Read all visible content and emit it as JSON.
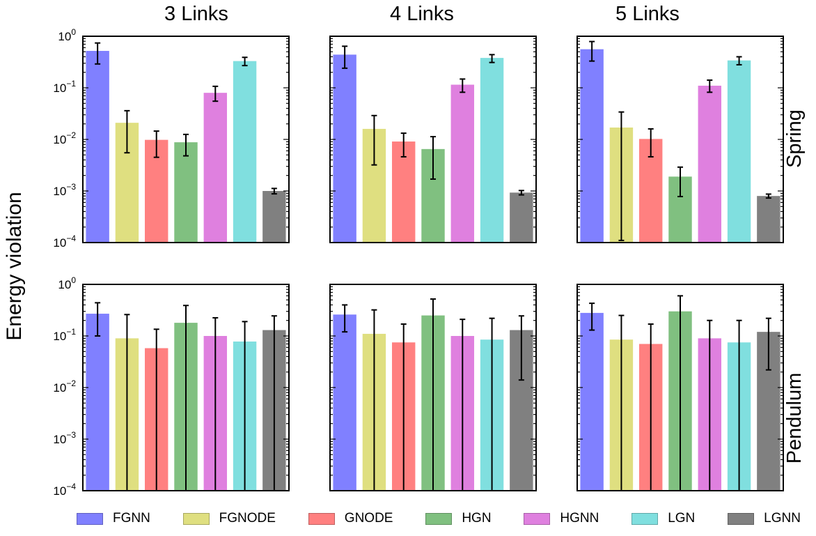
{
  "figure": {
    "ylabel": "Energy violation",
    "col_titles": [
      "3 Links",
      "4 Links",
      "5 Links"
    ],
    "row_titles": [
      "Spring",
      "Pendulum"
    ]
  },
  "legend": {
    "items": [
      {
        "label": "FGNN",
        "color": "#8080ff"
      },
      {
        "label": "FGNODE",
        "color": "#dfdf80"
      },
      {
        "label": "GNODE",
        "color": "#ff8080"
      },
      {
        "label": "HGN",
        "color": "#80c080"
      },
      {
        "label": "HGNN",
        "color": "#df80df"
      },
      {
        "label": "LGN",
        "color": "#80dfdf"
      },
      {
        "label": "LGNN",
        "color": "#808080"
      }
    ]
  },
  "chart_data": [
    {
      "type": "bar",
      "row": "Spring",
      "title": "3 Links",
      "yscale": "log",
      "ylim": [
        0.0001,
        1
      ],
      "ytick_labels": [
        "10^0",
        "10^-1",
        "10^-2",
        "10^-3",
        "10^-4"
      ],
      "categories": [
        "FGNN",
        "FGNODE",
        "GNODE",
        "HGN",
        "HGNN",
        "LGN",
        "LGNN"
      ],
      "values": [
        0.52,
        0.021,
        0.0098,
        0.0088,
        0.08,
        0.33,
        0.001
      ],
      "err_low": [
        0.29,
        0.0055,
        0.0045,
        0.0048,
        0.055,
        0.27,
        0.00088
      ],
      "err_high": [
        0.74,
        0.036,
        0.0145,
        0.0125,
        0.107,
        0.39,
        0.00112
      ]
    },
    {
      "type": "bar",
      "row": "Spring",
      "title": "4 Links",
      "yscale": "log",
      "ylim": [
        0.0001,
        1
      ],
      "categories": [
        "FGNN",
        "FGNODE",
        "GNODE",
        "HGN",
        "HGNN",
        "LGN",
        "LGNN"
      ],
      "values": [
        0.44,
        0.016,
        0.0091,
        0.0065,
        0.115,
        0.38,
        0.00093
      ],
      "err_low": [
        0.24,
        0.0032,
        0.0046,
        0.0017,
        0.082,
        0.31,
        0.00084
      ],
      "err_high": [
        0.64,
        0.029,
        0.0132,
        0.0113,
        0.148,
        0.44,
        0.00102
      ]
    },
    {
      "type": "bar",
      "row": "Spring",
      "title": "5 Links",
      "yscale": "log",
      "ylim": [
        0.0001,
        1
      ],
      "categories": [
        "FGNN",
        "FGNODE",
        "GNODE",
        "HGN",
        "HGNN",
        "LGN",
        "LGNN"
      ],
      "values": [
        0.56,
        0.017,
        0.0102,
        0.0019,
        0.11,
        0.34,
        0.0008
      ],
      "err_low": [
        0.33,
        0.00011,
        0.0046,
        0.00078,
        0.082,
        0.28,
        0.00073
      ],
      "err_high": [
        0.79,
        0.034,
        0.016,
        0.0029,
        0.141,
        0.4,
        0.00087
      ]
    },
    {
      "type": "bar",
      "row": "Pendulum",
      "title": "3 Links",
      "yscale": "log",
      "ylim": [
        0.0001,
        1
      ],
      "categories": [
        "FGNN",
        "FGNODE",
        "GNODE",
        "HGN",
        "HGNN",
        "LGN",
        "LGNN"
      ],
      "values": [
        0.27,
        0.09,
        0.058,
        0.18,
        0.1,
        0.078,
        0.13
      ],
      "err_low": [
        0.1,
        0.0001,
        0.0001,
        0.0001,
        0.0001,
        0.0001,
        0.0001
      ],
      "err_high": [
        0.44,
        0.26,
        0.135,
        0.39,
        0.225,
        0.19,
        0.245
      ]
    },
    {
      "type": "bar",
      "row": "Pendulum",
      "title": "4 Links",
      "yscale": "log",
      "ylim": [
        0.0001,
        1
      ],
      "categories": [
        "FGNN",
        "FGNODE",
        "GNODE",
        "HGN",
        "HGNN",
        "LGN",
        "LGNN"
      ],
      "values": [
        0.26,
        0.11,
        0.075,
        0.25,
        0.1,
        0.085,
        0.13
      ],
      "err_low": [
        0.12,
        0.0001,
        0.0001,
        0.0001,
        0.0001,
        0.0001,
        0.014
      ],
      "err_high": [
        0.4,
        0.32,
        0.17,
        0.52,
        0.21,
        0.22,
        0.245
      ]
    },
    {
      "type": "bar",
      "row": "Pendulum",
      "title": "5 Links",
      "yscale": "log",
      "ylim": [
        0.0001,
        1
      ],
      "categories": [
        "FGNN",
        "FGNODE",
        "GNODE",
        "HGN",
        "HGNN",
        "LGN",
        "LGNN"
      ],
      "values": [
        0.28,
        0.085,
        0.07,
        0.3,
        0.09,
        0.075,
        0.12
      ],
      "err_low": [
        0.13,
        0.0001,
        0.0001,
        0.0001,
        0.0001,
        0.0001,
        0.022
      ],
      "err_high": [
        0.43,
        0.25,
        0.17,
        0.6,
        0.2,
        0.2,
        0.22
      ]
    }
  ]
}
